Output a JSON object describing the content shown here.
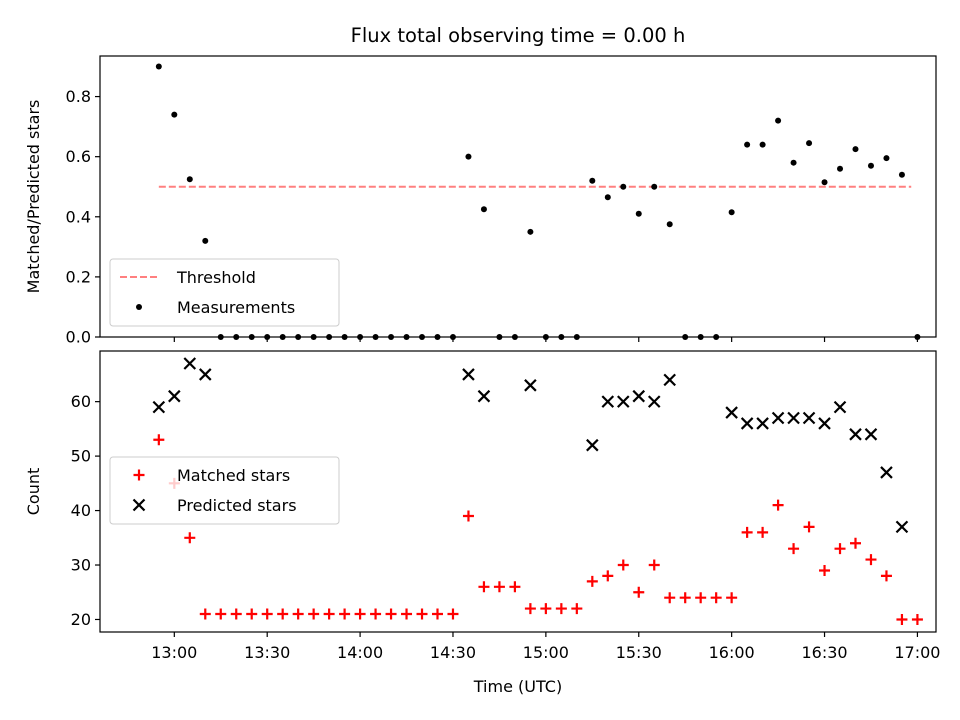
{
  "figure": {
    "title": "Flux total observing time = 0.00 h",
    "xlabel": "Time (UTC)"
  },
  "chart_data": [
    {
      "type": "scatter",
      "title": "Flux total observing time = 0.00 h",
      "xlabel": "",
      "ylabel": "Matched/Predicted stars",
      "ylim": [
        0,
        0.935
      ],
      "xlim": [
        "12:36",
        "17:06"
      ],
      "yticks": [
        "0.0",
        "0.2",
        "0.4",
        "0.6",
        "0.8"
      ],
      "grid": false,
      "legend_position": "lower-left",
      "series": [
        {
          "name": "Threshold",
          "kind": "dashed-line",
          "color": "#ff8080",
          "x": [
            "12:55",
            "16:58"
          ],
          "y": [
            0.5,
            0.5
          ]
        },
        {
          "name": "Measurements",
          "kind": "points",
          "color": "#000000",
          "x": [
            "12:55",
            "13:00",
            "13:05",
            "13:10",
            "13:15",
            "13:20",
            "13:25",
            "13:30",
            "13:35",
            "13:40",
            "13:45",
            "13:50",
            "13:55",
            "14:00",
            "14:05",
            "14:10",
            "14:15",
            "14:20",
            "14:25",
            "14:30",
            "14:35",
            "14:40",
            "14:45",
            "14:50",
            "14:55",
            "15:00",
            "15:05",
            "15:10",
            "15:15",
            "15:20",
            "15:25",
            "15:30",
            "15:35",
            "15:40",
            "15:45",
            "15:50",
            "15:55",
            "16:00",
            "16:05",
            "16:10",
            "16:15",
            "16:20",
            "16:25",
            "16:30",
            "16:35",
            "16:40",
            "16:45",
            "16:50",
            "16:55",
            "17:00"
          ],
          "y": [
            0.9,
            0.74,
            0.525,
            0.32,
            0,
            0,
            0,
            0,
            0,
            0,
            0,
            0,
            0,
            0,
            0,
            0,
            0,
            0,
            0,
            0,
            0.6,
            0.425,
            0,
            0,
            0.35,
            0,
            0,
            0,
            0.52,
            0.465,
            0.5,
            0.41,
            0.5,
            0.375,
            0,
            0,
            0,
            0.415,
            0.64,
            0.64,
            0.72,
            0.58,
            0.645,
            0.515,
            0.56,
            0.625,
            0.57,
            0.595,
            0.54,
            0
          ]
        }
      ]
    },
    {
      "type": "scatter",
      "xlabel": "Time (UTC)",
      "ylabel": "Count",
      "ylim": [
        17.7,
        69.3
      ],
      "xlim": [
        "12:36",
        "17:06"
      ],
      "xticks": [
        "13:00",
        "13:30",
        "14:00",
        "14:30",
        "15:00",
        "15:30",
        "16:00",
        "16:30",
        "17:00"
      ],
      "yticks": [
        "20",
        "30",
        "40",
        "50",
        "60"
      ],
      "grid": false,
      "legend_position": "center-left",
      "series": [
        {
          "name": "Matched stars",
          "marker": "plus",
          "color": "#ff0000",
          "x": [
            "12:55",
            "13:00",
            "13:05",
            "13:10",
            "13:15",
            "13:20",
            "13:25",
            "13:30",
            "13:35",
            "13:40",
            "13:45",
            "13:50",
            "13:55",
            "14:00",
            "14:05",
            "14:10",
            "14:15",
            "14:20",
            "14:25",
            "14:30",
            "14:35",
            "14:40",
            "14:45",
            "14:50",
            "14:55",
            "15:00",
            "15:05",
            "15:10",
            "15:15",
            "15:20",
            "15:25",
            "15:30",
            "15:35",
            "15:40",
            "15:45",
            "15:50",
            "15:55",
            "16:00",
            "16:05",
            "16:10",
            "16:15",
            "16:20",
            "16:25",
            "16:30",
            "16:35",
            "16:40",
            "16:45",
            "16:50",
            "16:55",
            "17:00"
          ],
          "y": [
            53,
            45,
            35,
            21,
            21,
            21,
            21,
            21,
            21,
            21,
            21,
            21,
            21,
            21,
            21,
            21,
            21,
            21,
            21,
            21,
            39,
            26,
            26,
            26,
            22,
            22,
            22,
            22,
            27,
            28,
            30,
            25,
            30,
            24,
            24,
            24,
            24,
            24,
            36,
            36,
            41,
            33,
            37,
            29,
            33,
            34,
            31,
            28,
            20,
            20
          ]
        },
        {
          "name": "Predicted stars",
          "marker": "x",
          "color": "#000000",
          "x": [
            "12:55",
            "13:00",
            "13:05",
            "13:10",
            "14:35",
            "14:40",
            "14:55",
            "15:15",
            "15:20",
            "15:25",
            "15:30",
            "15:35",
            "15:40",
            "16:00",
            "16:05",
            "16:10",
            "16:15",
            "16:20",
            "16:25",
            "16:30",
            "16:35",
            "16:40",
            "16:45",
            "16:50",
            "16:55"
          ],
          "y": [
            59,
            61,
            67,
            65,
            65,
            61,
            63,
            52,
            60,
            60,
            61,
            60,
            64,
            58,
            56,
            56,
            57,
            57,
            57,
            56,
            59,
            54,
            54,
            47,
            37
          ]
        }
      ]
    }
  ]
}
